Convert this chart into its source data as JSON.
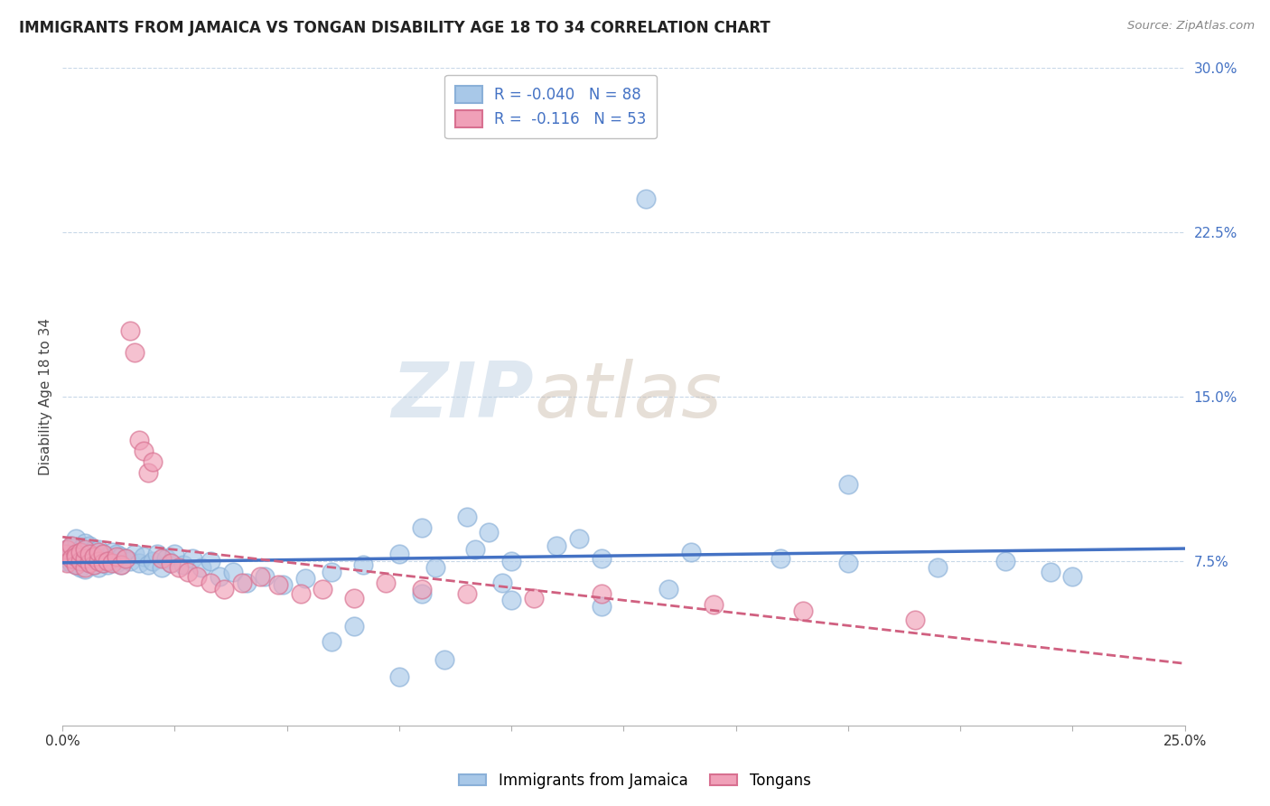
{
  "title": "IMMIGRANTS FROM JAMAICA VS TONGAN DISABILITY AGE 18 TO 34 CORRELATION CHART",
  "source": "Source: ZipAtlas.com",
  "ylabel": "Disability Age 18 to 34",
  "xlim": [
    0.0,
    0.25
  ],
  "ylim": [
    0.0,
    0.3
  ],
  "xticks": [
    0.0,
    0.025,
    0.05,
    0.075,
    0.1,
    0.125,
    0.15,
    0.175,
    0.2,
    0.225,
    0.25
  ],
  "yticks_right": [
    0.075,
    0.15,
    0.225,
    0.3
  ],
  "ytick_labels_right": [
    "7.5%",
    "15.0%",
    "22.5%",
    "30.0%"
  ],
  "watermark_zip": "ZIP",
  "watermark_atlas": "atlas",
  "jamaica_color": "#a8c8e8",
  "jamaica_edge_color": "#8ab0d8",
  "tongan_color": "#f0a0b8",
  "tongan_edge_color": "#d87090",
  "jamaica_line_color": "#4472c4",
  "tongan_line_color": "#d06080",
  "jamaica_scatter_x": [
    0.0005,
    0.001,
    0.001,
    0.002,
    0.002,
    0.002,
    0.003,
    0.003,
    0.003,
    0.003,
    0.004,
    0.004,
    0.004,
    0.005,
    0.005,
    0.005,
    0.005,
    0.006,
    0.006,
    0.006,
    0.007,
    0.007,
    0.007,
    0.008,
    0.008,
    0.008,
    0.009,
    0.009,
    0.01,
    0.01,
    0.011,
    0.011,
    0.012,
    0.012,
    0.013,
    0.013,
    0.014,
    0.015,
    0.016,
    0.017,
    0.018,
    0.019,
    0.02,
    0.021,
    0.022,
    0.023,
    0.024,
    0.025,
    0.027,
    0.029,
    0.031,
    0.033,
    0.035,
    0.038,
    0.041,
    0.045,
    0.049,
    0.054,
    0.06,
    0.067,
    0.075,
    0.083,
    0.092,
    0.1,
    0.11,
    0.12,
    0.13,
    0.08,
    0.09,
    0.095,
    0.115,
    0.14,
    0.16,
    0.175,
    0.195,
    0.21,
    0.22,
    0.225,
    0.175,
    0.08,
    0.1,
    0.12,
    0.135,
    0.098,
    0.06,
    0.075,
    0.085,
    0.065
  ],
  "jamaica_scatter_y": [
    0.075,
    0.076,
    0.08,
    0.074,
    0.078,
    0.082,
    0.073,
    0.077,
    0.081,
    0.085,
    0.072,
    0.076,
    0.08,
    0.071,
    0.075,
    0.079,
    0.083,
    0.074,
    0.078,
    0.082,
    0.073,
    0.077,
    0.08,
    0.072,
    0.076,
    0.08,
    0.074,
    0.078,
    0.073,
    0.077,
    0.075,
    0.079,
    0.074,
    0.078,
    0.073,
    0.077,
    0.076,
    0.075,
    0.078,
    0.074,
    0.077,
    0.073,
    0.075,
    0.078,
    0.072,
    0.076,
    0.074,
    0.078,
    0.073,
    0.076,
    0.072,
    0.075,
    0.068,
    0.07,
    0.065,
    0.068,
    0.064,
    0.067,
    0.07,
    0.073,
    0.078,
    0.072,
    0.08,
    0.075,
    0.082,
    0.076,
    0.24,
    0.09,
    0.095,
    0.088,
    0.085,
    0.079,
    0.076,
    0.074,
    0.072,
    0.075,
    0.07,
    0.068,
    0.11,
    0.06,
    0.057,
    0.054,
    0.062,
    0.065,
    0.038,
    0.022,
    0.03,
    0.045
  ],
  "tongan_scatter_x": [
    0.0005,
    0.001,
    0.001,
    0.002,
    0.002,
    0.003,
    0.003,
    0.003,
    0.004,
    0.004,
    0.005,
    0.005,
    0.005,
    0.006,
    0.006,
    0.007,
    0.007,
    0.008,
    0.008,
    0.009,
    0.009,
    0.01,
    0.011,
    0.012,
    0.013,
    0.014,
    0.015,
    0.016,
    0.017,
    0.018,
    0.019,
    0.02,
    0.022,
    0.024,
    0.026,
    0.028,
    0.03,
    0.033,
    0.036,
    0.04,
    0.044,
    0.048,
    0.053,
    0.058,
    0.065,
    0.072,
    0.08,
    0.09,
    0.105,
    0.12,
    0.145,
    0.165,
    0.19
  ],
  "tongan_scatter_y": [
    0.078,
    0.08,
    0.074,
    0.082,
    0.076,
    0.078,
    0.073,
    0.077,
    0.075,
    0.079,
    0.072,
    0.076,
    0.08,
    0.074,
    0.078,
    0.073,
    0.077,
    0.075,
    0.079,
    0.074,
    0.078,
    0.075,
    0.074,
    0.077,
    0.073,
    0.076,
    0.18,
    0.17,
    0.13,
    0.125,
    0.115,
    0.12,
    0.076,
    0.074,
    0.072,
    0.07,
    0.068,
    0.065,
    0.062,
    0.065,
    0.068,
    0.064,
    0.06,
    0.062,
    0.058,
    0.065,
    0.062,
    0.06,
    0.058,
    0.06,
    0.055,
    0.052,
    0.048
  ],
  "legend_label_1": "R = -0.040",
  "legend_n_1": "N = 88",
  "legend_label_2": "R =  -0.116",
  "legend_n_2": "N = 53",
  "bottom_legend_1": "Immigrants from Jamaica",
  "bottom_legend_2": "Tongans",
  "title_fontsize": 12,
  "axis_fontsize": 11
}
